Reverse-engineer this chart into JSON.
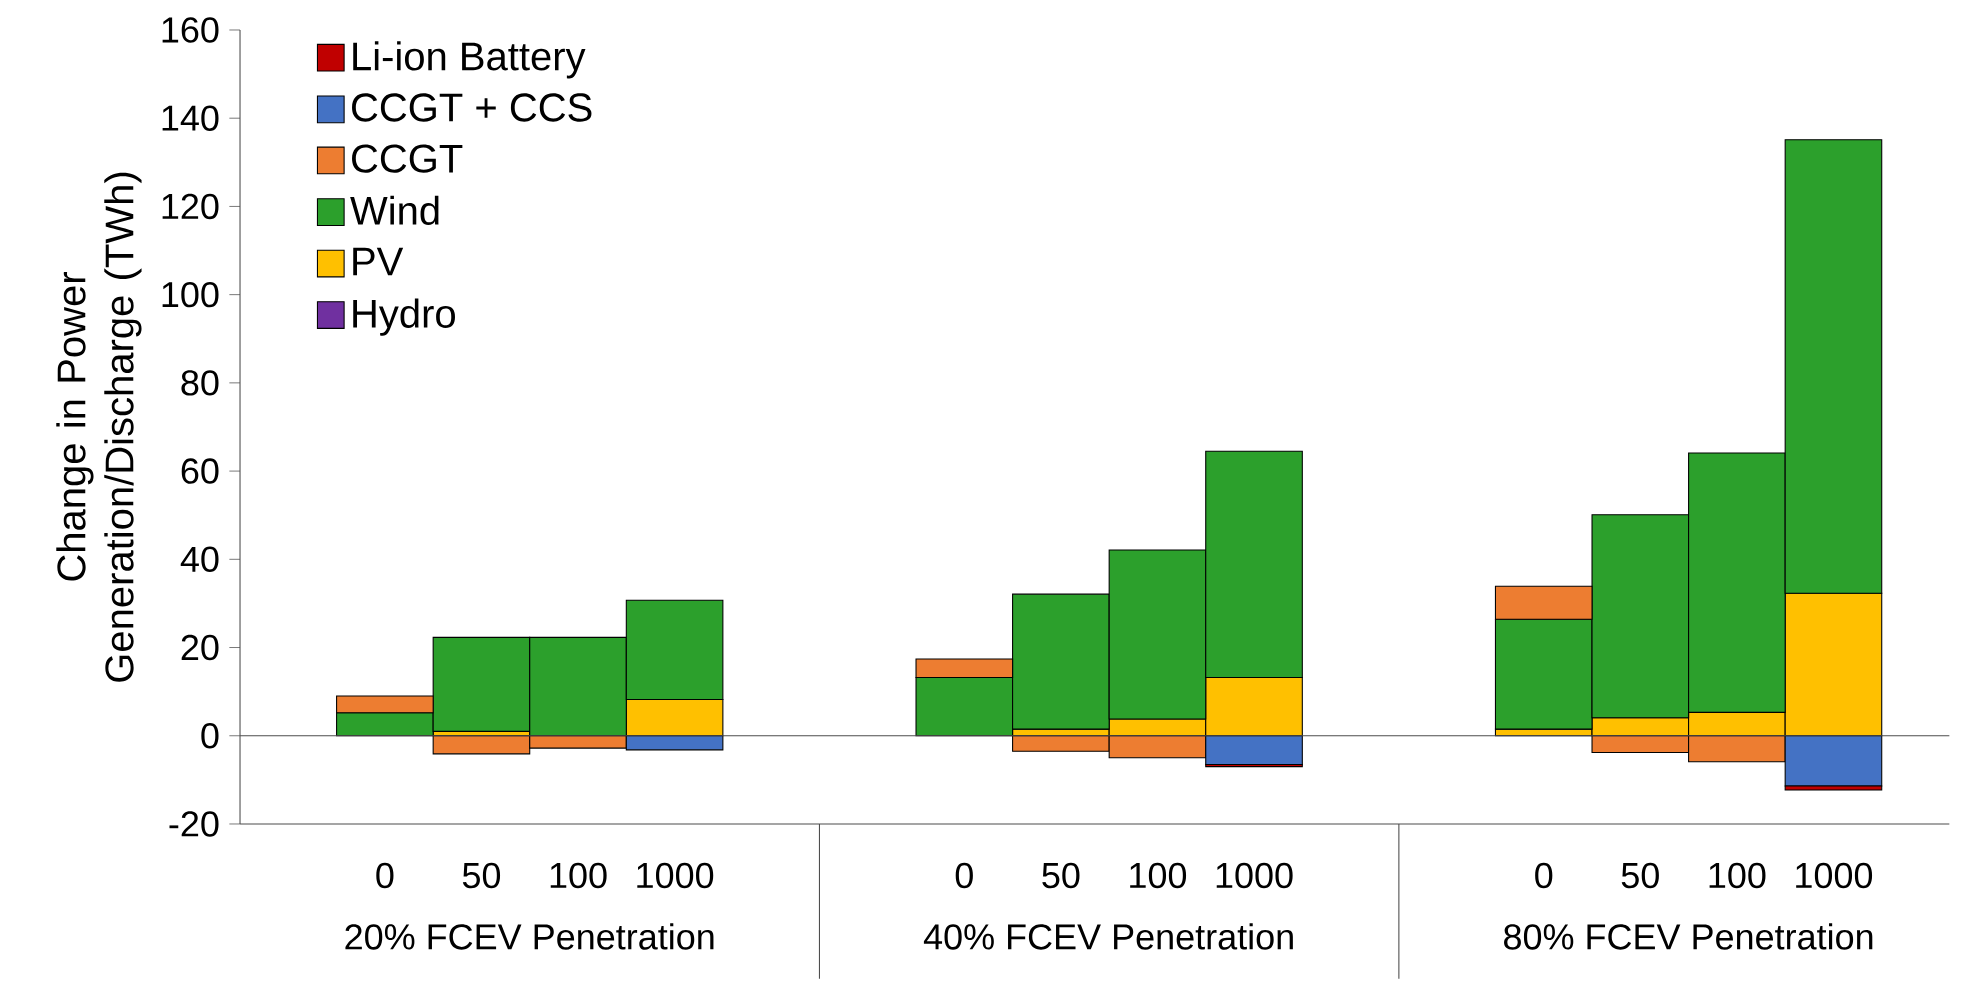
{
  "chart_data": {
    "type": "bar",
    "stacked": true,
    "ylabel": "Change in Power Generation/Discharge (TWh)",
    "legend": "top left",
    "categories": [
      "0",
      "50",
      "100",
      "1000",
      null,
      null,
      "0",
      "50",
      "100",
      "1000",
      null,
      null,
      "0",
      "50",
      "100",
      "1000"
    ],
    "series": [
      {
        "name": "Hydro",
        "color": "#7030a0",
        "values": [
          0,
          0,
          0,
          0,
          null,
          null,
          0,
          0,
          0,
          0,
          null,
          null,
          0,
          0,
          0,
          0
        ]
      },
      {
        "name": "PV",
        "color": "#ffc000",
        "values": [
          0,
          1.0,
          null,
          8.2,
          null,
          null,
          0,
          1.5,
          3.8,
          13.2,
          null,
          null,
          1.5,
          4.1,
          5.3,
          32.3
        ]
      },
      {
        "name": "Wind",
        "color": "#2ca02c",
        "values": [
          5.2,
          21.3,
          22.3,
          22.5,
          null,
          null,
          13.2,
          30.6,
          38.3,
          51.3,
          null,
          null,
          24.9,
          46,
          58.8,
          102.8
        ]
      },
      {
        "name": "CCGT",
        "color": "#ed7d31",
        "values": [
          3.8,
          -4.1,
          -2.8,
          0,
          null,
          null,
          4.2,
          -3.5,
          -5,
          0,
          null,
          null,
          7.5,
          -3.8,
          -5.9,
          0
        ]
      },
      {
        "name": "CCGT + CCS",
        "color": "#4472c4",
        "values": [
          0,
          0,
          0,
          -3.2,
          null,
          null,
          0,
          0,
          0,
          -6.5,
          null,
          null,
          0,
          0,
          0,
          -11.4
        ]
      },
      {
        "name": "Li-ion Battery",
        "color": "#c00000",
        "values": [
          0,
          0,
          0,
          0,
          null,
          null,
          0,
          0,
          0,
          -0.5,
          null,
          null,
          0,
          0,
          0,
          -0.9
        ]
      }
    ],
    "ylim": [
      -20,
      160
    ],
    "yticks": [
      -20,
      0,
      20,
      40,
      60,
      80,
      100,
      120,
      140,
      160
    ],
    "annotations": [
      "20% FCEV Penetration",
      "40% FCEV Penetration",
      "80% FCEV Penetration"
    ]
  }
}
